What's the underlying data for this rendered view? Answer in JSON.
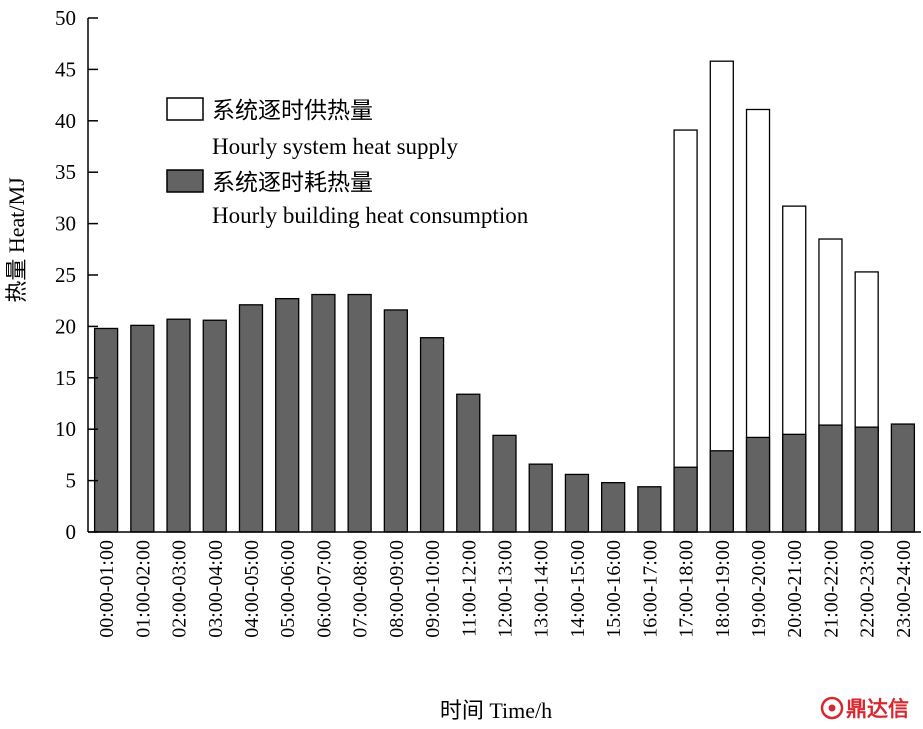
{
  "chart_data": {
    "type": "bar",
    "xlabel": "时间 Time/h",
    "ylabel": "热量 Heat/MJ",
    "ylim": [
      0,
      50
    ],
    "y_ticks": [
      0,
      5,
      10,
      15,
      20,
      25,
      30,
      35,
      40,
      45,
      50
    ],
    "grid": false,
    "legend_position": "top-left",
    "categories": [
      "00:00-01:00",
      "01:00-02:00",
      "02:00-03:00",
      "03:00-04:00",
      "04:00-05:00",
      "05:00-06:00",
      "06:00-07:00",
      "07:00-08:00",
      "08:00-09:00",
      "09:00-10:00",
      "11:00-12:00",
      "12:00-13:00",
      "13:00-14:00",
      "14:00-15:00",
      "15:00-16:00",
      "16:00-17:00",
      "17:00-18:00",
      "18:00-19:00",
      "19:00-20:00",
      "20:00-21:00",
      "21:00-22:00",
      "22:00-23:00",
      "23:00-24:00"
    ],
    "series": [
      {
        "name": "系统逐时供热量",
        "name_en": "Hourly system heat supply",
        "color": "#ffffff",
        "values": [
          null,
          null,
          null,
          null,
          null,
          null,
          null,
          null,
          null,
          null,
          null,
          null,
          null,
          null,
          null,
          null,
          39.1,
          45.8,
          41.1,
          31.7,
          28.5,
          25.3,
          null
        ]
      },
      {
        "name": "系统逐时耗热量",
        "name_en": "Hourly building heat consumption",
        "color": "#636363",
        "values": [
          19.8,
          20.1,
          20.7,
          20.6,
          22.1,
          22.7,
          23.1,
          23.1,
          21.6,
          18.9,
          13.4,
          9.4,
          6.6,
          5.6,
          4.8,
          4.4,
          6.3,
          7.9,
          9.2,
          9.5,
          10.4,
          10.2,
          10.5
        ]
      }
    ]
  },
  "watermark": {
    "text": "鼎达信",
    "color": "#d7282f"
  }
}
